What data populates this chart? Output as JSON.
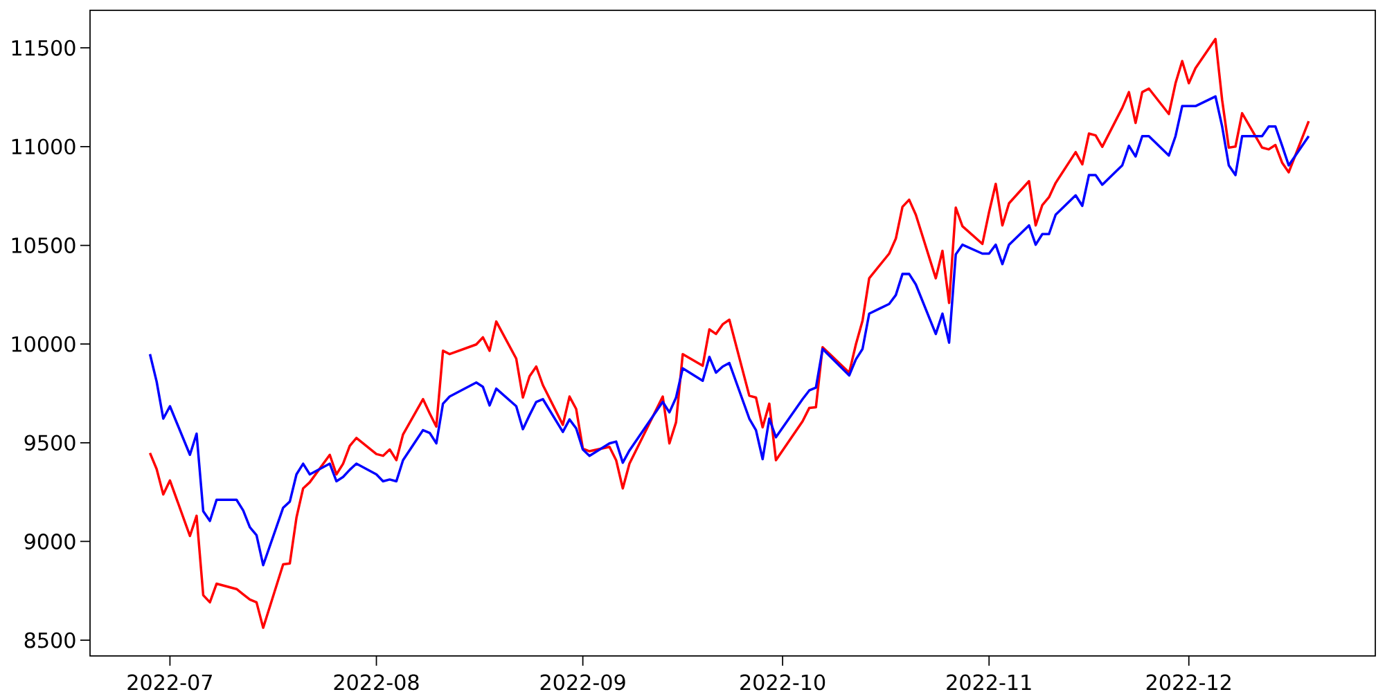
{
  "chart_data": {
    "type": "line",
    "x": [
      "2022-06-28",
      "2022-06-29",
      "2022-06-30",
      "2022-07-01",
      "2022-07-04",
      "2022-07-05",
      "2022-07-06",
      "2022-07-07",
      "2022-07-08",
      "2022-07-11",
      "2022-07-12",
      "2022-07-13",
      "2022-07-14",
      "2022-07-15",
      "2022-07-18",
      "2022-07-19",
      "2022-07-20",
      "2022-07-21",
      "2022-07-22",
      "2022-07-25",
      "2022-07-26",
      "2022-07-27",
      "2022-07-28",
      "2022-07-29",
      "2022-08-01",
      "2022-08-02",
      "2022-08-03",
      "2022-08-04",
      "2022-08-05",
      "2022-08-08",
      "2022-08-09",
      "2022-08-10",
      "2022-08-11",
      "2022-08-12",
      "2022-08-16",
      "2022-08-17",
      "2022-08-18",
      "2022-08-19",
      "2022-08-22",
      "2022-08-23",
      "2022-08-24",
      "2022-08-25",
      "2022-08-26",
      "2022-08-29",
      "2022-08-30",
      "2022-08-31",
      "2022-09-01",
      "2022-09-02",
      "2022-09-05",
      "2022-09-06",
      "2022-09-07",
      "2022-09-08",
      "2022-09-13",
      "2022-09-14",
      "2022-09-15",
      "2022-09-16",
      "2022-09-19",
      "2022-09-20",
      "2022-09-21",
      "2022-09-22",
      "2022-09-23",
      "2022-09-26",
      "2022-09-27",
      "2022-09-28",
      "2022-09-29",
      "2022-09-30",
      "2022-10-04",
      "2022-10-05",
      "2022-10-06",
      "2022-10-07",
      "2022-10-11",
      "2022-10-12",
      "2022-10-13",
      "2022-10-14",
      "2022-10-17",
      "2022-10-18",
      "2022-10-19",
      "2022-10-20",
      "2022-10-21",
      "2022-10-24",
      "2022-10-25",
      "2022-10-26",
      "2022-10-27",
      "2022-10-28",
      "2022-10-31",
      "2022-11-01",
      "2022-11-02",
      "2022-11-03",
      "2022-11-04",
      "2022-11-07",
      "2022-11-08",
      "2022-11-09",
      "2022-11-10",
      "2022-11-11",
      "2022-11-14",
      "2022-11-15",
      "2022-11-16",
      "2022-11-17",
      "2022-11-18",
      "2022-11-21",
      "2022-11-22",
      "2022-11-23",
      "2022-11-24",
      "2022-11-25",
      "2022-11-28",
      "2022-11-29",
      "2022-11-30",
      "2022-12-01",
      "2022-12-02",
      "2022-12-05",
      "2022-12-06",
      "2022-12-07",
      "2022-12-08",
      "2022-12-09",
      "2022-12-12",
      "2022-12-13",
      "2022-12-14",
      "2022-12-15",
      "2022-12-16",
      "2022-12-19"
    ],
    "series": [
      {
        "color": "#ff0000",
        "values": [
          9448,
          9367,
          9238,
          9309,
          9028,
          9130,
          8728,
          8692,
          8786,
          8759,
          8732,
          8706,
          8692,
          8563,
          8884,
          8889,
          9121,
          9269,
          9300,
          9439,
          9340,
          9394,
          9484,
          9524,
          9443,
          9434,
          9466,
          9412,
          9542,
          9721,
          9649,
          9582,
          9966,
          9949,
          9998,
          10034,
          9966,
          10114,
          9926,
          9729,
          9837,
          9886,
          9792,
          9591,
          9734,
          9671,
          9470,
          9457,
          9479,
          9412,
          9269,
          9394,
          9734,
          9497,
          9604,
          9949,
          9890,
          10074,
          10051,
          10100,
          10123,
          9738,
          9729,
          9578,
          9698,
          9412,
          9609,
          9676,
          9680,
          9984,
          9855,
          9998,
          10118,
          10333,
          10458,
          10534,
          10695,
          10731,
          10655,
          10333,
          10472,
          10208,
          10691,
          10597,
          10507,
          10668,
          10811,
          10601,
          10713,
          10825,
          10601,
          10704,
          10744,
          10816,
          10972,
          10910,
          11066,
          11057,
          10999,
          11196,
          11276,
          11120,
          11276,
          11294,
          11165,
          11321,
          11433,
          11321,
          11397,
          11545,
          11236,
          10995,
          11000,
          11169,
          10995,
          10986,
          11008,
          10919,
          10870,
          11129
        ]
      },
      {
        "color": "#0000ff",
        "values": [
          9949,
          9810,
          9622,
          9685,
          9439,
          9546,
          9153,
          9104,
          9211,
          9211,
          9157,
          9072,
          9032,
          8880,
          9171,
          9202,
          9340,
          9394,
          9340,
          9394,
          9305,
          9327,
          9363,
          9394,
          9340,
          9305,
          9314,
          9305,
          9412,
          9564,
          9550,
          9497,
          9698,
          9734,
          9805,
          9783,
          9689,
          9774,
          9685,
          9569,
          9640,
          9707,
          9721,
          9555,
          9618,
          9573,
          9466,
          9434,
          9497,
          9506,
          9399,
          9461,
          9707,
          9654,
          9729,
          9877,
          9814,
          9935,
          9855,
          9886,
          9904,
          9622,
          9564,
          9417,
          9622,
          9528,
          9721,
          9765,
          9779,
          9975,
          9841,
          9922,
          9975,
          10154,
          10203,
          10248,
          10355,
          10355,
          10302,
          10051,
          10154,
          10007,
          10454,
          10503,
          10458,
          10458,
          10503,
          10405,
          10503,
          10601,
          10503,
          10557,
          10557,
          10655,
          10753,
          10700,
          10856,
          10856,
          10807,
          10905,
          11004,
          10950,
          11053,
          11053,
          10955,
          11053,
          11205,
          11205,
          11205,
          11254,
          11102,
          10905,
          10856,
          11053,
          11053,
          11102,
          11102,
          11005,
          10905,
          11053
        ]
      }
    ],
    "xlim": [
      "2022-06-19",
      "2022-12-29"
    ],
    "ylim": [
      8420,
      11690
    ],
    "xticks": [
      "2022-07",
      "2022-08",
      "2022-09",
      "2022-10",
      "2022-11",
      "2022-12"
    ],
    "yticks": [
      8500,
      9000,
      9500,
      10000,
      10500,
      11000,
      11500
    ]
  }
}
